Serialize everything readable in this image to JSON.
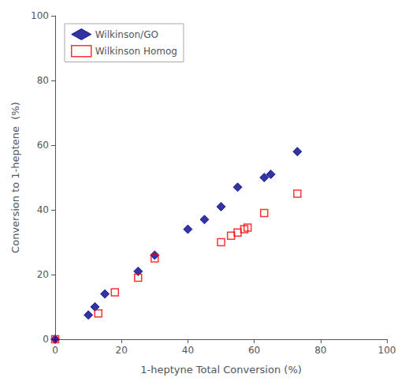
{
  "chart_data": {
    "type": "scatter",
    "xlabel": "1-heptyne Total Conversion (%)",
    "ylabel": "Conversion to 1-heptene  (%)",
    "xlim": [
      0,
      100
    ],
    "ylim": [
      0,
      100
    ],
    "xticks": [
      0,
      20,
      40,
      60,
      80,
      100
    ],
    "yticks": [
      0,
      20,
      40,
      60,
      80,
      100
    ],
    "grid": false,
    "legend": "upper left",
    "series": [
      {
        "name": "Wilkinson/GO",
        "color": "#00008B",
        "marker": "diamond",
        "x": [
          0,
          10,
          12,
          15,
          25,
          30,
          40,
          45,
          50,
          55,
          63,
          65,
          73
        ],
        "values": [
          0,
          7.5,
          10,
          14,
          21,
          26,
          34,
          37,
          41,
          47,
          50,
          51,
          58
        ]
      },
      {
        "name": "Wilkinson Homog",
        "color": "#FF0000",
        "marker": "open-square",
        "x": [
          0,
          13,
          18,
          25,
          30,
          50,
          53,
          55,
          57,
          58,
          63,
          73
        ],
        "values": [
          0,
          8,
          14.5,
          19,
          25,
          30,
          32,
          33,
          34,
          34.5,
          39,
          45
        ]
      }
    ]
  }
}
